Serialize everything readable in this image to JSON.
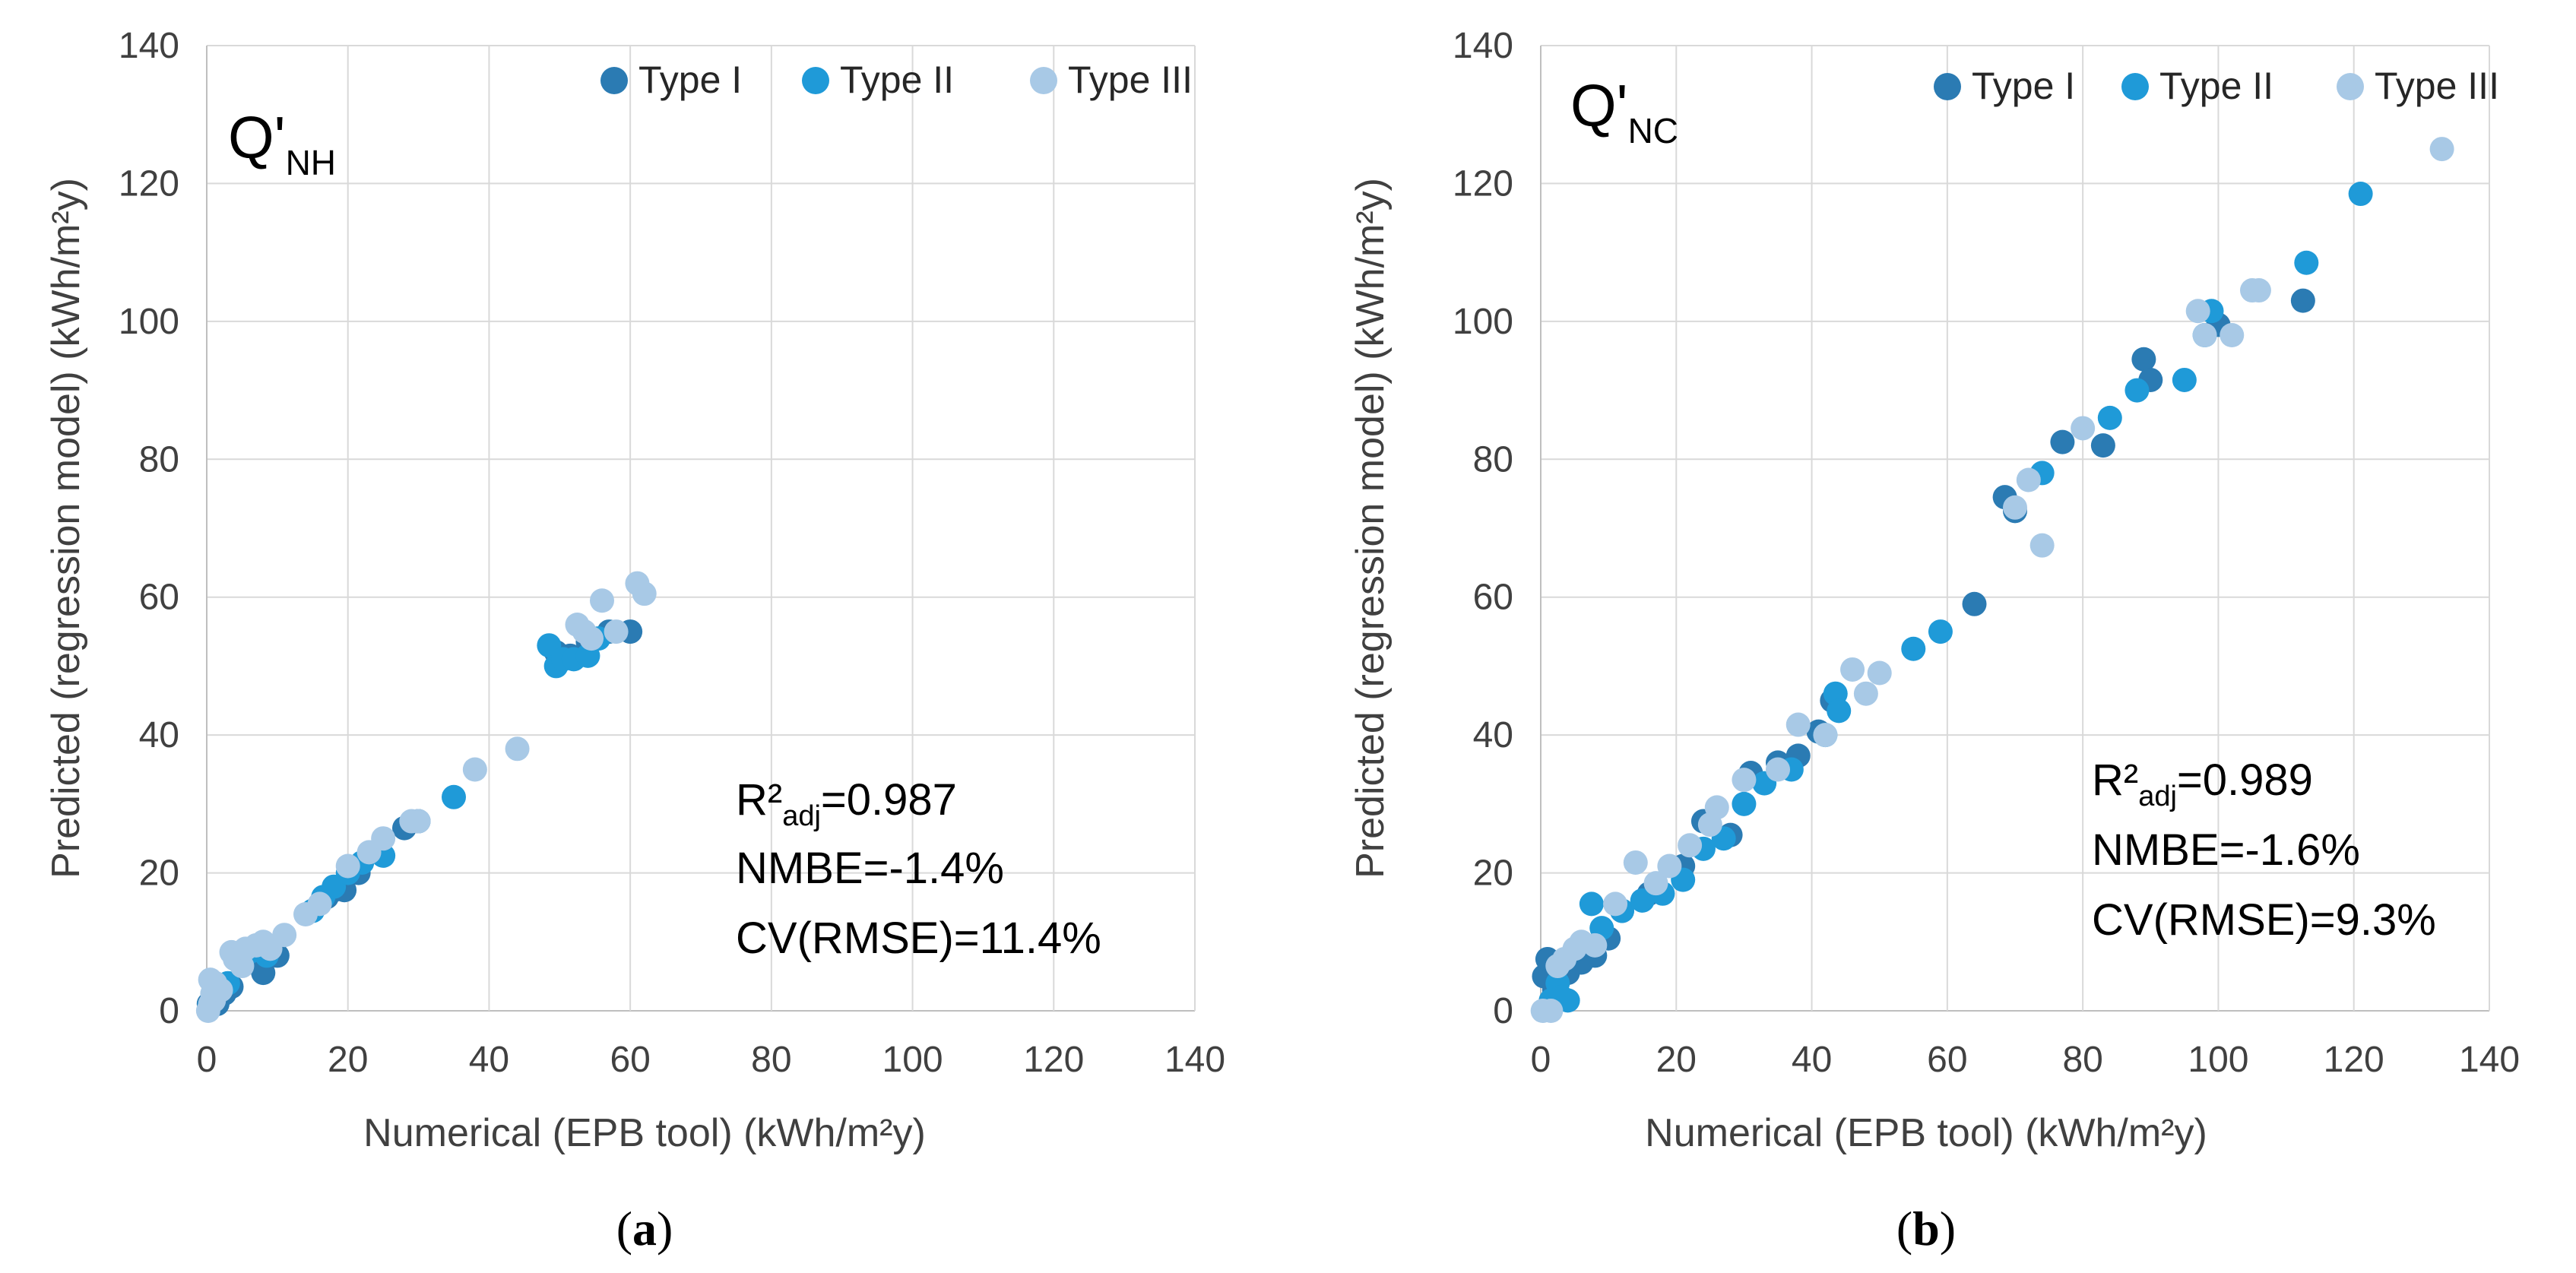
{
  "colors": {
    "type_i": "#2b7bb3",
    "type_ii": "#1f9ad8",
    "type_iii": "#a8c9e6",
    "grid": "#d9d9d9",
    "text": "#404040"
  },
  "chart_data": [
    {
      "type": "scatter",
      "panel_caption": {
        "open": "(",
        "letter": "a",
        "close": ")"
      },
      "title": {
        "main": "Q'",
        "sub": "NH"
      },
      "xlabel": "Numerical (EPB tool) (kWh/m²y)",
      "ylabel": "Predicted (regression model) (kWh/m²y)",
      "xlim": [
        0,
        140
      ],
      "ylim": [
        0,
        140
      ],
      "xticks": [
        "0",
        "20",
        "40",
        "60",
        "80",
        "100",
        "120",
        "140"
      ],
      "yticks": [
        "0",
        "20",
        "40",
        "60",
        "80",
        "100",
        "120",
        "140"
      ],
      "legend": [
        "Type I",
        "Type II",
        "Type III"
      ],
      "stats": {
        "r2_prefix": "R²",
        "r2_sub": "adj",
        "r2_value": "=0.987",
        "nmbe": "NMBE=-1.4%",
        "cv": "CV(RMSE)=11.4%"
      },
      "series": [
        {
          "name": "Type I",
          "color": "#2b7bb3",
          "x": [
            0.3,
            1,
            1.5,
            2.5,
            3.5,
            5,
            6.5,
            8,
            9,
            10,
            17,
            18,
            19.5,
            21.5,
            24.5,
            28,
            30,
            49.5,
            51.5,
            54,
            57,
            60
          ],
          "y": [
            1,
            1.5,
            1,
            2.5,
            3.5,
            7.5,
            8,
            5.5,
            9,
            8,
            16.5,
            17.5,
            17.5,
            20,
            23,
            26.5,
            27.5,
            52,
            51.5,
            53.5,
            55,
            55
          ]
        },
        {
          "name": "Type II",
          "color": "#1f9ad8",
          "x": [
            0.4,
            1,
            1.8,
            3,
            4.5,
            6,
            7.5,
            8.5,
            15,
            16.5,
            18,
            20,
            22,
            25,
            35,
            48.5,
            49.5,
            50.5,
            52,
            54,
            55.5
          ],
          "y": [
            0.8,
            2,
            3,
            4,
            7.5,
            8.5,
            9.5,
            8,
            14.5,
            16.5,
            18,
            20,
            21.5,
            22.5,
            31,
            53,
            50,
            51,
            51,
            51.5,
            54
          ]
        },
        {
          "name": "Type III",
          "color": "#a8c9e6",
          "x": [
            0.2,
            0.5,
            0.8,
            1.2,
            0.5,
            1,
            2,
            3.5,
            4,
            5,
            5.5,
            7,
            8,
            9,
            11,
            14,
            16,
            20,
            23,
            25,
            29,
            30,
            38,
            44,
            52.5,
            53.5,
            54.5,
            56,
            58,
            61,
            62
          ],
          "y": [
            0,
            1,
            2.5,
            4,
            4.5,
            1.5,
            3,
            8.5,
            7.5,
            6.5,
            9,
            9.5,
            10,
            9,
            11,
            14,
            15.5,
            21,
            23,
            25,
            27.5,
            27.5,
            35,
            38,
            56,
            55,
            54,
            59.5,
            55,
            62,
            60.5
          ]
        }
      ]
    },
    {
      "type": "scatter",
      "panel_caption": {
        "open": "(",
        "letter": "b",
        "close": ")"
      },
      "title": {
        "main": "Q'",
        "sub": "NC"
      },
      "xlabel": "Numerical (EPB tool) (kWh/m²y)",
      "ylabel": "Predicted (regression model) (kWh/m²y)",
      "xlim": [
        0,
        140
      ],
      "ylim": [
        0,
        140
      ],
      "xticks": [
        "0",
        "20",
        "40",
        "60",
        "80",
        "100",
        "120",
        "140"
      ],
      "yticks": [
        "0",
        "20",
        "40",
        "60",
        "80",
        "100",
        "120",
        "140"
      ],
      "legend": [
        "Type I",
        "Type II",
        "Type III"
      ],
      "stats": {
        "r2_prefix": "R²",
        "r2_sub": "adj",
        "r2_value": "=0.989",
        "nmbe": "NMBE=-1.6%",
        "cv": "CV(RMSE)=9.3%"
      },
      "series": [
        {
          "name": "Type I",
          "color": "#2b7bb3",
          "x": [
            0.5,
            1,
            2,
            4,
            6,
            8,
            10,
            12,
            16,
            21,
            24,
            28,
            31,
            35,
            38,
            41,
            43,
            64,
            68.5,
            70,
            77,
            83,
            89,
            90,
            100,
            112.5
          ],
          "y": [
            5,
            7.5,
            3,
            5.5,
            7,
            8,
            10.5,
            14.5,
            17,
            21,
            27.5,
            25.5,
            34.5,
            36,
            37,
            40.5,
            45,
            59,
            74.5,
            72.5,
            82.5,
            82,
            94.5,
            91.5,
            99.5,
            103
          ]
        },
        {
          "name": "Type II",
          "color": "#1f9ad8",
          "x": [
            1.5,
            2.5,
            3,
            4,
            7.5,
            9,
            12,
            15,
            18,
            21,
            24,
            27,
            30,
            33,
            37,
            42,
            43.5,
            44,
            55,
            59,
            74,
            84,
            88,
            95,
            98,
            99,
            113,
            121
          ],
          "y": [
            1.5,
            4,
            2,
            1.5,
            15.5,
            12,
            14.5,
            16,
            17,
            19,
            23.5,
            25,
            30,
            33,
            35,
            40,
            46,
            43.5,
            52.5,
            55,
            78,
            86,
            90,
            91.5,
            98,
            101.5,
            108.5,
            118.5
          ]
        },
        {
          "name": "Type III",
          "color": "#a8c9e6",
          "x": [
            0.3,
            1.5,
            2.5,
            3.5,
            5,
            6,
            8,
            11,
            14,
            17,
            19,
            22,
            25,
            26,
            30,
            35,
            38,
            42,
            46,
            48,
            50,
            70,
            72,
            74,
            80,
            97,
            98,
            102,
            105,
            106,
            133
          ],
          "y": [
            0,
            0,
            6.5,
            7.5,
            9,
            10,
            9.5,
            15.5,
            21.5,
            18.5,
            21,
            24,
            27,
            29.5,
            33.5,
            35,
            41.5,
            40,
            49.5,
            46,
            49,
            73,
            77,
            67.5,
            84.5,
            101.5,
            98,
            98,
            104.5,
            104.5,
            125
          ]
        }
      ]
    }
  ]
}
